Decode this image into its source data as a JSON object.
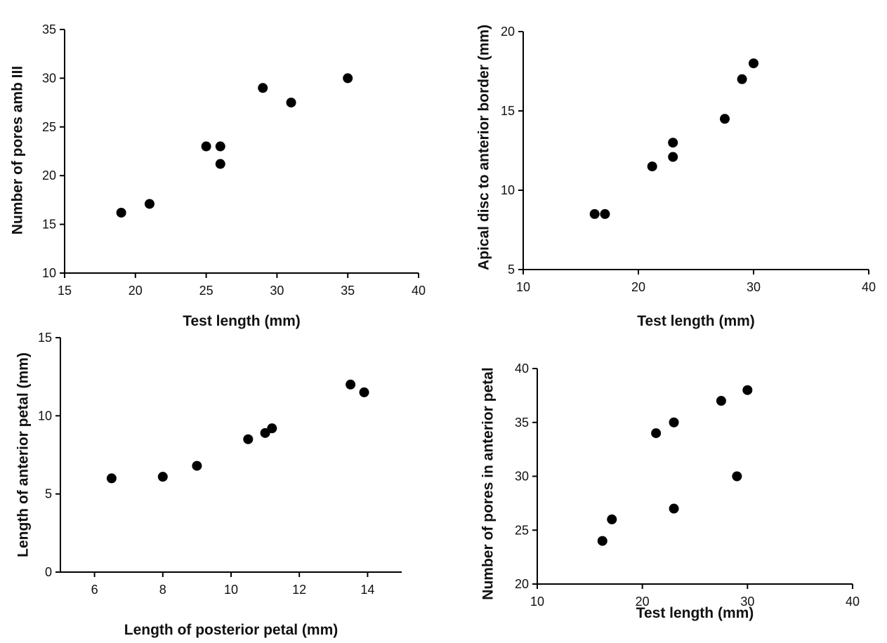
{
  "chart_data": [
    {
      "type": "scatter",
      "title": "",
      "xlabel": "Test length (mm)",
      "ylabel": "Number of pores amb III",
      "xlim": [
        15,
        40
      ],
      "ylim": [
        10,
        35
      ],
      "xticks": [
        "15",
        "20",
        "25",
        "30",
        "35",
        "40"
      ],
      "yticks": [
        "10",
        "15",
        "20",
        "25",
        "30",
        "35"
      ],
      "grid": false,
      "points": [
        {
          "x": 19,
          "y": 16.2
        },
        {
          "x": 21,
          "y": 17.1
        },
        {
          "x": 25,
          "y": 23
        },
        {
          "x": 26,
          "y": 23
        },
        {
          "x": 26,
          "y": 21.2
        },
        {
          "x": 29,
          "y": 29
        },
        {
          "x": 31,
          "y": 27.5
        },
        {
          "x": 35,
          "y": 30
        }
      ]
    },
    {
      "type": "scatter",
      "title": "",
      "xlabel": "Test length (mm)",
      "ylabel": "Apical disc to anterior border (mm)",
      "xlim": [
        10,
        40
      ],
      "ylim": [
        5,
        20
      ],
      "xticks": [
        "10",
        "20",
        "30",
        "40"
      ],
      "yticks": [
        "5",
        "10",
        "15",
        "20"
      ],
      "grid": false,
      "points": [
        {
          "x": 16.2,
          "y": 8.5
        },
        {
          "x": 17.1,
          "y": 8.5
        },
        {
          "x": 21.2,
          "y": 11.5
        },
        {
          "x": 23,
          "y": 12.1
        },
        {
          "x": 23,
          "y": 13
        },
        {
          "x": 27.5,
          "y": 14.5
        },
        {
          "x": 29,
          "y": 17
        },
        {
          "x": 30,
          "y": 18
        }
      ]
    },
    {
      "type": "scatter",
      "title": "",
      "xlabel": "Length of posterior petal (mm)",
      "ylabel": "Length of anterior petal (mm)",
      "xlim": [
        5,
        15
      ],
      "ylim": [
        0,
        15
      ],
      "xticks": [
        "6",
        "8",
        "10",
        "12",
        "14"
      ],
      "yticks": [
        "0",
        "5",
        "10",
        "15"
      ],
      "grid": false,
      "points": [
        {
          "x": 6.5,
          "y": 6
        },
        {
          "x": 8,
          "y": 6.1
        },
        {
          "x": 9,
          "y": 6.8
        },
        {
          "x": 10.5,
          "y": 8.5
        },
        {
          "x": 11,
          "y": 8.9
        },
        {
          "x": 11.2,
          "y": 9.2
        },
        {
          "x": 13.5,
          "y": 12
        },
        {
          "x": 13.9,
          "y": 11.5
        }
      ]
    },
    {
      "type": "scatter",
      "title": "",
      "xlabel": "Test length (mm)",
      "ylabel": "Number of pores in anterior petal",
      "xlim": [
        10,
        40
      ],
      "ylim": [
        20,
        40
      ],
      "xticks": [
        "10",
        "20",
        "30",
        "40"
      ],
      "yticks": [
        "20",
        "25",
        "30",
        "35",
        "40"
      ],
      "grid": false,
      "points": [
        {
          "x": 16.2,
          "y": 24
        },
        {
          "x": 17.1,
          "y": 26
        },
        {
          "x": 21.3,
          "y": 34
        },
        {
          "x": 23,
          "y": 35
        },
        {
          "x": 23,
          "y": 27
        },
        {
          "x": 27.5,
          "y": 37
        },
        {
          "x": 29,
          "y": 30
        },
        {
          "x": 30,
          "y": 38
        }
      ]
    }
  ]
}
